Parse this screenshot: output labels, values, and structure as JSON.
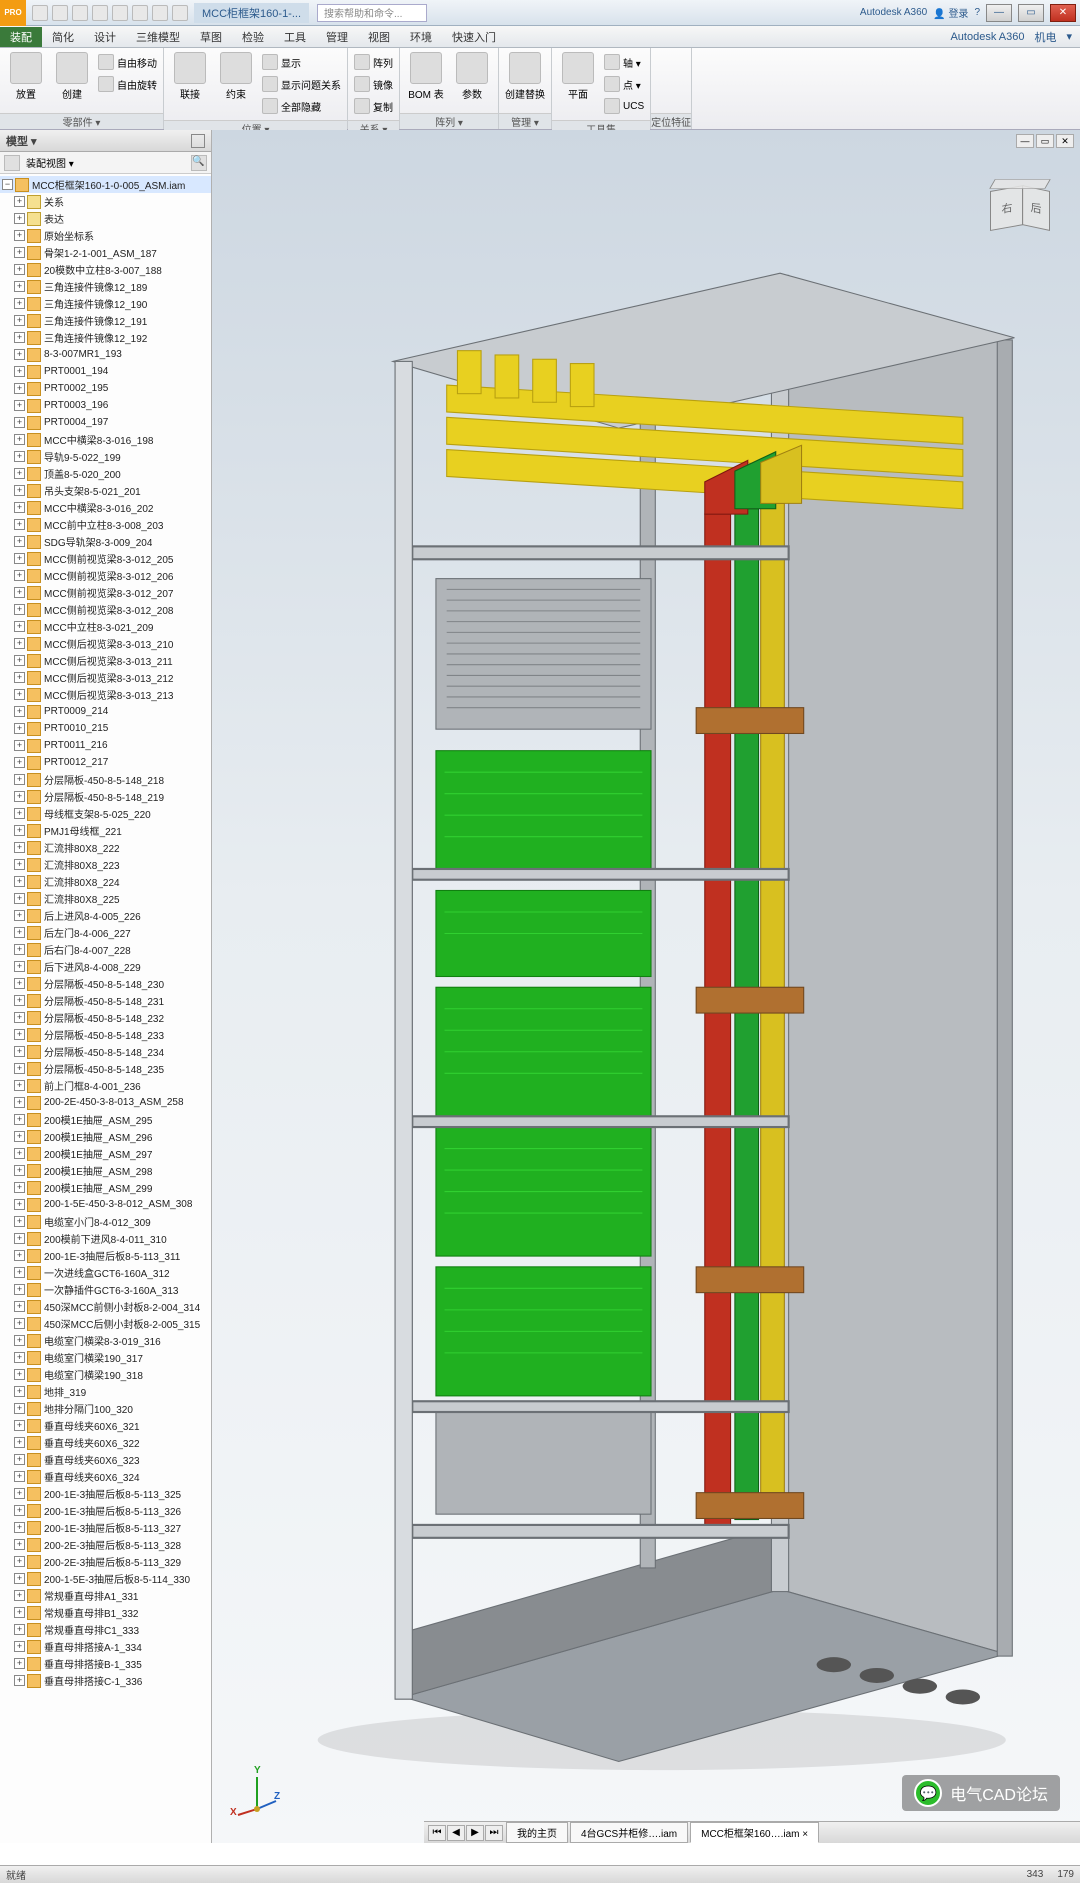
{
  "title": {
    "pro": "PRO",
    "file_tab": "MCC柜框架160-1-...",
    "search_placeholder": "搜索帮助和命令...",
    "a360": "Autodesk A360",
    "login": "登录"
  },
  "win_buttons": {
    "min": "—",
    "max": "▭",
    "close": "✕"
  },
  "menu": [
    "装配",
    "简化",
    "设计",
    "三维模型",
    "草图",
    "检验",
    "工具",
    "管理",
    "视图",
    "环境",
    "快速入门"
  ],
  "menu_right": [
    "Autodesk A360",
    "机电"
  ],
  "ribbon": {
    "panels": [
      {
        "title": "零部件 ▾",
        "big": [
          {
            "l": "放置"
          },
          {
            "l": "创建"
          }
        ],
        "rows": [
          [
            "自由移动"
          ],
          [
            "自由旋转"
          ]
        ]
      },
      {
        "title": "位置 ▾",
        "big": [
          {
            "l": "联接"
          },
          {
            "l": "约束"
          }
        ],
        "rows": [
          [
            "显示"
          ],
          [
            "显示问题关系"
          ],
          [
            "全部隐藏"
          ]
        ]
      },
      {
        "title": "关系 ▾",
        "big": [],
        "rows": [
          [
            "阵列"
          ],
          [
            "镜像"
          ],
          [
            "复制"
          ]
        ]
      },
      {
        "title": "阵列 ▾",
        "big": [
          {
            "l": "BOM 表"
          },
          {
            "l": "参数"
          }
        ],
        "rows": []
      },
      {
        "title": "管理 ▾",
        "big": [
          {
            "l": "创建替换"
          }
        ],
        "rows": []
      },
      {
        "title": "工具集",
        "big": [
          {
            "l": "平面"
          }
        ],
        "rows": [
          [
            "轴 ▾"
          ],
          [
            "点 ▾"
          ],
          [
            "UCS"
          ]
        ]
      },
      {
        "title": "定位特征",
        "big": [],
        "rows": []
      }
    ]
  },
  "browser": {
    "header": "模型 ▾",
    "toolbar_label": "装配视图 ▾",
    "root": "MCC柜框架160-1-0-005_ASM.iam",
    "items": [
      {
        "t": "fold",
        "l": "关系"
      },
      {
        "t": "fold",
        "l": "表达"
      },
      {
        "t": "asm",
        "l": "原始坐标系"
      },
      {
        "t": "asm",
        "l": "骨架1-2-1-001_ASM_187"
      },
      {
        "t": "asm",
        "l": "20模数中立柱8-3-007_188"
      },
      {
        "t": "asm",
        "l": "三角连接件镜像12_189"
      },
      {
        "t": "asm",
        "l": "三角连接件镜像12_190"
      },
      {
        "t": "asm",
        "l": "三角连接件镜像12_191"
      },
      {
        "t": "asm",
        "l": "三角连接件镜像12_192"
      },
      {
        "t": "asm",
        "l": "8-3-007MR1_193"
      },
      {
        "t": "asm",
        "l": "PRT0001_194"
      },
      {
        "t": "asm",
        "l": "PRT0002_195"
      },
      {
        "t": "asm",
        "l": "PRT0003_196"
      },
      {
        "t": "asm",
        "l": "PRT0004_197"
      },
      {
        "t": "asm",
        "l": "MCC中横梁8-3-016_198"
      },
      {
        "t": "asm",
        "l": "导轨9-5-022_199"
      },
      {
        "t": "asm",
        "l": "顶盖8-5-020_200"
      },
      {
        "t": "asm",
        "l": "吊头支架8-5-021_201"
      },
      {
        "t": "asm",
        "l": "MCC中横梁8-3-016_202"
      },
      {
        "t": "asm",
        "l": "MCC前中立柱8-3-008_203"
      },
      {
        "t": "asm",
        "l": "SDG导轨架8-3-009_204"
      },
      {
        "t": "asm",
        "l": "MCC侧前视览梁8-3-012_205"
      },
      {
        "t": "asm",
        "l": "MCC侧前视览梁8-3-012_206"
      },
      {
        "t": "asm",
        "l": "MCC侧前视览梁8-3-012_207"
      },
      {
        "t": "asm",
        "l": "MCC侧前视览梁8-3-012_208"
      },
      {
        "t": "asm",
        "l": "MCC中立柱8-3-021_209"
      },
      {
        "t": "asm",
        "l": "MCC侧后视览梁8-3-013_210"
      },
      {
        "t": "asm",
        "l": "MCC侧后视览梁8-3-013_211"
      },
      {
        "t": "asm",
        "l": "MCC侧后视览梁8-3-013_212"
      },
      {
        "t": "asm",
        "l": "MCC侧后视览梁8-3-013_213"
      },
      {
        "t": "asm",
        "l": "PRT0009_214"
      },
      {
        "t": "asm",
        "l": "PRT0010_215"
      },
      {
        "t": "asm",
        "l": "PRT0011_216"
      },
      {
        "t": "asm",
        "l": "PRT0012_217"
      },
      {
        "t": "asm",
        "l": "分层隔板-450-8-5-148_218"
      },
      {
        "t": "asm",
        "l": "分层隔板-450-8-5-148_219"
      },
      {
        "t": "asm",
        "l": "母线框支架8-5-025_220"
      },
      {
        "t": "asm",
        "l": "PMJ1母线框_221"
      },
      {
        "t": "asm",
        "l": "汇流排80X8_222"
      },
      {
        "t": "asm",
        "l": "汇流排80X8_223"
      },
      {
        "t": "asm",
        "l": "汇流排80X8_224"
      },
      {
        "t": "asm",
        "l": "汇流排80X8_225"
      },
      {
        "t": "asm",
        "l": "后上进风8-4-005_226"
      },
      {
        "t": "asm",
        "l": "后左门8-4-006_227"
      },
      {
        "t": "asm",
        "l": "后右门8-4-007_228"
      },
      {
        "t": "asm",
        "l": "后下进风8-4-008_229"
      },
      {
        "t": "asm",
        "l": "分层隔板-450-8-5-148_230"
      },
      {
        "t": "asm",
        "l": "分层隔板-450-8-5-148_231"
      },
      {
        "t": "asm",
        "l": "分层隔板-450-8-5-148_232"
      },
      {
        "t": "asm",
        "l": "分层隔板-450-8-5-148_233"
      },
      {
        "t": "asm",
        "l": "分层隔板-450-8-5-148_234"
      },
      {
        "t": "asm",
        "l": "分层隔板-450-8-5-148_235"
      },
      {
        "t": "asm",
        "l": "前上门框8-4-001_236"
      },
      {
        "t": "asm",
        "l": "200-2E-450-3-8-013_ASM_258"
      },
      {
        "t": "asm",
        "l": "200模1E抽屉_ASM_295"
      },
      {
        "t": "asm",
        "l": "200模1E抽屉_ASM_296"
      },
      {
        "t": "asm",
        "l": "200模1E抽屉_ASM_297"
      },
      {
        "t": "asm",
        "l": "200模1E抽屉_ASM_298"
      },
      {
        "t": "asm",
        "l": "200模1E抽屉_ASM_299"
      },
      {
        "t": "asm",
        "l": "200-1-5E-450-3-8-012_ASM_308"
      },
      {
        "t": "asm",
        "l": "电缆室小门8-4-012_309"
      },
      {
        "t": "asm",
        "l": "200模前下进风8-4-011_310"
      },
      {
        "t": "asm",
        "l": "200-1E-3抽屉后板8-5-113_311"
      },
      {
        "t": "asm",
        "l": "一次进线盒GCT6-160A_312"
      },
      {
        "t": "asm",
        "l": "一次静插件GCT6-3-160A_313"
      },
      {
        "t": "asm",
        "l": "450深MCC前侧小封板8-2-004_314"
      },
      {
        "t": "asm",
        "l": "450深MCC后侧小封板8-2-005_315"
      },
      {
        "t": "asm",
        "l": "电缆室门横梁8-3-019_316"
      },
      {
        "t": "asm",
        "l": "电缆室门横梁190_317"
      },
      {
        "t": "asm",
        "l": "电缆室门横梁190_318"
      },
      {
        "t": "asm",
        "l": "地排_319"
      },
      {
        "t": "asm",
        "l": "地排分隔门100_320"
      },
      {
        "t": "asm",
        "l": "垂直母线夹60X6_321"
      },
      {
        "t": "asm",
        "l": "垂直母线夹60X6_322"
      },
      {
        "t": "asm",
        "l": "垂直母线夹60X6_323"
      },
      {
        "t": "asm",
        "l": "垂直母线夹60X6_324"
      },
      {
        "t": "asm",
        "l": "200-1E-3抽屉后板8-5-113_325"
      },
      {
        "t": "asm",
        "l": "200-1E-3抽屉后板8-5-113_326"
      },
      {
        "t": "asm",
        "l": "200-1E-3抽屉后板8-5-113_327"
      },
      {
        "t": "asm",
        "l": "200-2E-3抽屉后板8-5-113_328"
      },
      {
        "t": "asm",
        "l": "200-2E-3抽屉后板8-5-113_329"
      },
      {
        "t": "asm",
        "l": "200-1-5E-3抽屉后板8-5-114_330"
      },
      {
        "t": "asm",
        "l": "常规垂直母排A1_331"
      },
      {
        "t": "asm",
        "l": "常规垂直母排B1_332"
      },
      {
        "t": "asm",
        "l": "常规垂直母排C1_333"
      },
      {
        "t": "asm",
        "l": "垂直母排搭接A-1_334"
      },
      {
        "t": "asm",
        "l": "垂直母排搭接B-1_335"
      },
      {
        "t": "asm",
        "l": "垂直母排搭接C-1_336"
      }
    ]
  },
  "viewcube": {
    "f1": "右",
    "f2": "后"
  },
  "triad": {
    "x": "X",
    "y": "Y",
    "z": "Z"
  },
  "doctabs": {
    "nav": [
      "⏮",
      "◀",
      "▶",
      "⏭"
    ],
    "tabs": [
      {
        "l": "我的主页",
        "a": false
      },
      {
        "l": "4台GCS并柜修….iam",
        "a": false
      },
      {
        "l": "MCC柜框架160….iam ×",
        "a": true
      }
    ]
  },
  "status": {
    "left": "就绪",
    "right": [
      "343",
      "179"
    ]
  },
  "watermark": "电气CAD论坛",
  "model_colors": {
    "frame": "#9aa0a6",
    "frame_dark": "#6b7075",
    "frame_light": "#c8ccd0",
    "busbar_top": "#e8d020",
    "busbar_top_dk": "#b8a010",
    "bar_red": "#c03020",
    "bar_grn": "#20a030",
    "bar_yel": "#d8c020",
    "drawer": "#20b020",
    "drawer_dk": "#108010",
    "bracket": "#b07030",
    "panel": "#b8bcc0"
  }
}
